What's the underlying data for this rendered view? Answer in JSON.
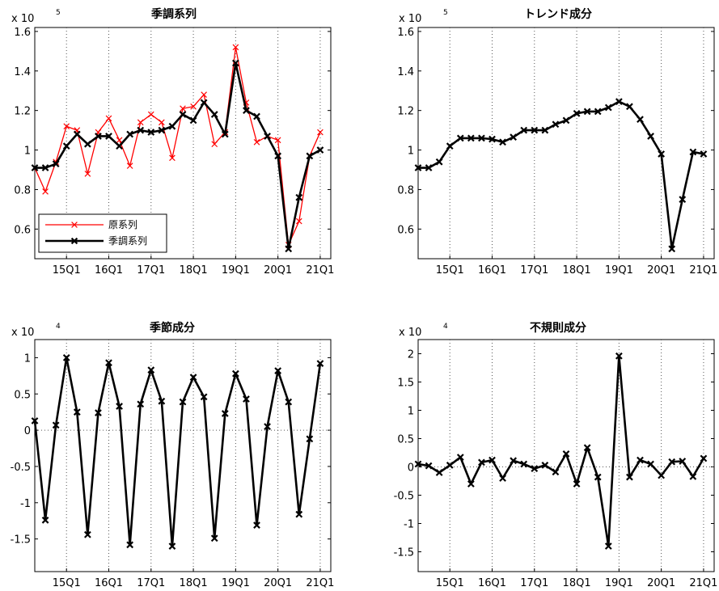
{
  "chart_data": [
    {
      "type": "line",
      "title": "季調系列",
      "exponent_label": "x 10",
      "exponent": "5",
      "scale": 100000,
      "x": [
        "14Q2",
        "14Q3",
        "14Q4",
        "15Q1",
        "15Q2",
        "15Q3",
        "15Q4",
        "16Q1",
        "16Q2",
        "16Q3",
        "16Q4",
        "17Q1",
        "17Q2",
        "17Q3",
        "17Q4",
        "18Q1",
        "18Q2",
        "18Q3",
        "18Q4",
        "19Q1",
        "19Q2",
        "19Q3",
        "19Q4",
        "20Q1",
        "20Q2",
        "20Q3",
        "20Q4",
        "21Q1",
        "21Q2"
      ],
      "xtick_labels": [
        "15Q1",
        "16Q1",
        "17Q1",
        "18Q1",
        "19Q1",
        "20Q1",
        "21Q1"
      ],
      "xticks": [
        "15Q1",
        "16Q1",
        "17Q1",
        "18Q1",
        "19Q1",
        "20Q1",
        "21Q1"
      ],
      "ylim": [
        0.45,
        1.62
      ],
      "yticks": [
        0.6,
        0.8,
        1,
        1.2,
        1.4,
        1.6
      ],
      "ytick_labels": [
        "0.6",
        "0.8",
        "1",
        "1.2",
        "1.4",
        "1.6"
      ],
      "zero_line": false,
      "legend_position": "bottom-left",
      "series": [
        {
          "name": "原系列",
          "color": "#ff0000",
          "width": 1.3,
          "values": [
            0.91,
            0.79,
            0.94,
            1.12,
            1.1,
            0.88,
            1.09,
            1.16,
            1.05,
            0.92,
            1.14,
            1.18,
            1.14,
            0.96,
            1.21,
            1.22,
            1.28,
            1.03,
            1.09,
            1.52,
            1.24,
            1.04,
            1.07,
            1.05,
            0.52,
            0.64,
            0.97,
            1.09,
            null
          ]
        },
        {
          "name": "季調系列",
          "color": "#000000",
          "width": 2.6,
          "values": [
            0.91,
            0.91,
            0.93,
            1.02,
            1.08,
            1.03,
            1.07,
            1.07,
            1.02,
            1.08,
            1.1,
            1.09,
            1.1,
            1.12,
            1.18,
            1.15,
            1.24,
            1.18,
            1.08,
            1.44,
            1.2,
            1.17,
            1.07,
            0.97,
            0.5,
            0.76,
            0.97,
            1.0,
            null
          ]
        }
      ]
    },
    {
      "type": "line",
      "title": "トレンド成分",
      "exponent_label": "x 10",
      "exponent": "5",
      "scale": 100000,
      "x": [
        "14Q2",
        "14Q3",
        "14Q4",
        "15Q1",
        "15Q2",
        "15Q3",
        "15Q4",
        "16Q1",
        "16Q2",
        "16Q3",
        "16Q4",
        "17Q1",
        "17Q2",
        "17Q3",
        "17Q4",
        "18Q1",
        "18Q2",
        "18Q3",
        "18Q4",
        "19Q1",
        "19Q2",
        "19Q3",
        "19Q4",
        "20Q1",
        "20Q2",
        "20Q3",
        "20Q4",
        "21Q1",
        "21Q2"
      ],
      "xtick_labels": [
        "15Q1",
        "16Q1",
        "17Q1",
        "18Q1",
        "19Q1",
        "20Q1",
        "21Q1"
      ],
      "xticks": [
        "15Q1",
        "16Q1",
        "17Q1",
        "18Q1",
        "19Q1",
        "20Q1",
        "21Q1"
      ],
      "ylim": [
        0.45,
        1.62
      ],
      "yticks": [
        0.6,
        0.8,
        1,
        1.2,
        1.4,
        1.6
      ],
      "ytick_labels": [
        "0.6",
        "0.8",
        "1",
        "1.2",
        "1.4",
        "1.6"
      ],
      "zero_line": false,
      "series": [
        {
          "color": "#000000",
          "width": 2.6,
          "values": [
            0.91,
            0.91,
            0.94,
            1.02,
            1.06,
            1.06,
            1.06,
            1.055,
            1.04,
            1.065,
            1.1,
            1.1,
            1.1,
            1.13,
            1.15,
            1.185,
            1.195,
            1.195,
            1.215,
            1.245,
            1.22,
            1.155,
            1.07,
            0.98,
            0.5,
            0.75,
            0.99,
            0.98,
            null
          ]
        }
      ]
    },
    {
      "type": "line",
      "title": "季節成分",
      "exponent_label": "x 10",
      "exponent": "4",
      "scale": 10000,
      "x": [
        "14Q2",
        "14Q3",
        "14Q4",
        "15Q1",
        "15Q2",
        "15Q3",
        "15Q4",
        "16Q1",
        "16Q2",
        "16Q3",
        "16Q4",
        "17Q1",
        "17Q2",
        "17Q3",
        "17Q4",
        "18Q1",
        "18Q2",
        "18Q3",
        "18Q4",
        "19Q1",
        "19Q2",
        "19Q3",
        "19Q4",
        "20Q1",
        "20Q2",
        "20Q3",
        "20Q4",
        "21Q1",
        "21Q2"
      ],
      "xtick_labels": [
        "15Q1",
        "16Q1",
        "17Q1",
        "18Q1",
        "19Q1",
        "20Q1",
        "21Q1"
      ],
      "xticks": [
        "15Q1",
        "16Q1",
        "17Q1",
        "18Q1",
        "19Q1",
        "20Q1",
        "21Q1"
      ],
      "ylim": [
        -1.95,
        1.25
      ],
      "yticks": [
        -1.5,
        -1,
        -0.5,
        0,
        0.5,
        1
      ],
      "ytick_labels": [
        "-1.5",
        "-1",
        "-0.5",
        "0",
        "0.5",
        "1"
      ],
      "zero_line": true,
      "series": [
        {
          "color": "#000000",
          "width": 2.6,
          "values": [
            0.13,
            -1.24,
            0.07,
            1.0,
            0.25,
            -1.44,
            0.24,
            0.93,
            0.33,
            -1.58,
            0.36,
            0.83,
            0.4,
            -1.6,
            0.39,
            0.73,
            0.46,
            -1.49,
            0.23,
            0.78,
            0.43,
            -1.31,
            0.05,
            0.82,
            0.39,
            -1.16,
            -0.12,
            0.92,
            null
          ]
        }
      ]
    },
    {
      "type": "line",
      "title": "不規則成分",
      "exponent_label": "x 10",
      "exponent": "4",
      "scale": 10000,
      "x": [
        "14Q2",
        "14Q3",
        "14Q4",
        "15Q1",
        "15Q2",
        "15Q3",
        "15Q4",
        "16Q1",
        "16Q2",
        "16Q3",
        "16Q4",
        "17Q1",
        "17Q2",
        "17Q3",
        "17Q4",
        "18Q1",
        "18Q2",
        "18Q3",
        "18Q4",
        "19Q1",
        "19Q2",
        "19Q3",
        "19Q4",
        "20Q1",
        "20Q2",
        "20Q3",
        "20Q4",
        "21Q1",
        "21Q2"
      ],
      "xtick_labels": [
        "15Q1",
        "16Q1",
        "17Q1",
        "18Q1",
        "19Q1",
        "20Q1",
        "21Q1"
      ],
      "xticks": [
        "15Q1",
        "16Q1",
        "17Q1",
        "18Q1",
        "19Q1",
        "20Q1",
        "21Q1"
      ],
      "ylim": [
        -1.85,
        2.25
      ],
      "yticks": [
        -1.5,
        -1,
        -0.5,
        0,
        0.5,
        1,
        1.5,
        2
      ],
      "ytick_labels": [
        "-1.5",
        "-1",
        "-0.5",
        "0",
        "0.5",
        "1",
        "1.5",
        "2"
      ],
      "zero_line": true,
      "series": [
        {
          "color": "#000000",
          "width": 2.6,
          "values": [
            0.05,
            0.02,
            -0.1,
            0.03,
            0.17,
            -0.3,
            0.08,
            0.12,
            -0.2,
            0.11,
            0.05,
            -0.03,
            0.03,
            -0.09,
            0.23,
            -0.3,
            0.34,
            -0.18,
            -1.4,
            1.96,
            -0.18,
            0.12,
            0.05,
            -0.15,
            0.09,
            0.1,
            -0.17,
            0.15,
            null
          ]
        }
      ]
    }
  ]
}
